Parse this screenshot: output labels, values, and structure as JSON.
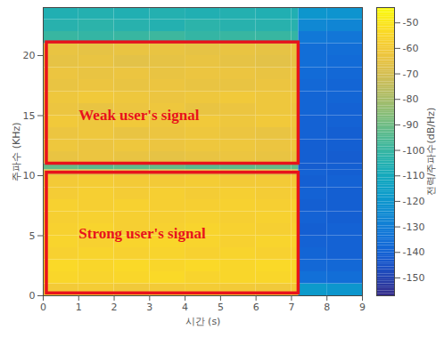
{
  "chart_data": {
    "type": "heatmap",
    "x_label": "시간 (s)",
    "y_label": "주파수 (KHz)",
    "xlim": [
      0,
      9
    ],
    "ylim": [
      0,
      24
    ],
    "xticks": [
      0,
      1,
      2,
      3,
      4,
      5,
      6,
      7,
      8,
      9
    ],
    "yticks": [
      0,
      5,
      10,
      15,
      20
    ],
    "grid": false,
    "x_edges": [
      0,
      1,
      2,
      3,
      4,
      5,
      6,
      7,
      7.2,
      8,
      9
    ],
    "y_edges": [
      0,
      1,
      2,
      3,
      4,
      5,
      6,
      7,
      8,
      9,
      10,
      10.5,
      11,
      12,
      13,
      14,
      15,
      16,
      17,
      18,
      19,
      20,
      21,
      22,
      23,
      24
    ],
    "cells": [
      [
        -60,
        -59,
        -61,
        -60,
        -59,
        -60,
        -61,
        -60,
        -118,
        -120
      ],
      [
        -55,
        -56,
        -55,
        -54,
        -56,
        -55,
        -55,
        -56,
        -135,
        -136
      ],
      [
        -54,
        -55,
        -54,
        -55,
        -54,
        -55,
        -54,
        -55,
        -138,
        -138
      ],
      [
        -57,
        -56,
        -57,
        -56,
        -57,
        -56,
        -57,
        -57,
        -139,
        -140
      ],
      [
        -56,
        -57,
        -56,
        -55,
        -56,
        -57,
        -56,
        -56,
        -140,
        -140
      ],
      [
        -57,
        -56,
        -58,
        -57,
        -56,
        -57,
        -58,
        -57,
        -141,
        -140
      ],
      [
        -58,
        -57,
        -58,
        -58,
        -57,
        -58,
        -57,
        -58,
        -140,
        -141
      ],
      [
        -57,
        -58,
        -57,
        -58,
        -58,
        -57,
        -58,
        -57,
        -141,
        -141
      ],
      [
        -59,
        -58,
        -59,
        -58,
        -59,
        -58,
        -59,
        -59,
        -140,
        -141
      ],
      [
        -60,
        -59,
        -60,
        -60,
        -59,
        -60,
        -60,
        -60,
        -141,
        -140
      ],
      [
        -66,
        -65,
        -66,
        -66,
        -65,
        -66,
        -66,
        -66,
        -140,
        -141
      ],
      [
        -92,
        -94,
        -93,
        -92,
        -94,
        -93,
        -92,
        -93,
        -142,
        -141
      ],
      [
        -64,
        -63,
        -64,
        -65,
        -64,
        -63,
        -64,
        -64,
        -141,
        -142
      ],
      [
        -62,
        -63,
        -62,
        -63,
        -62,
        -62,
        -63,
        -62,
        -141,
        -141
      ],
      [
        -63,
        -62,
        -64,
        -63,
        -62,
        -63,
        -64,
        -63,
        -140,
        -141
      ],
      [
        -61,
        -62,
        -61,
        -62,
        -61,
        -62,
        -61,
        -62,
        -140,
        -140
      ],
      [
        -63,
        -64,
        -63,
        -62,
        -64,
        -63,
        -62,
        -63,
        -139,
        -140
      ],
      [
        -62,
        -61,
        -62,
        -63,
        -62,
        -61,
        -62,
        -62,
        -139,
        -139
      ],
      [
        -64,
        -63,
        -64,
        -63,
        -64,
        -64,
        -63,
        -64,
        -138,
        -139
      ],
      [
        -63,
        -64,
        -63,
        -64,
        -63,
        -63,
        -64,
        -63,
        -137,
        -138
      ],
      [
        -65,
        -64,
        -66,
        -65,
        -64,
        -65,
        -66,
        -65,
        -136,
        -137
      ],
      [
        -64,
        -65,
        -64,
        -64,
        -65,
        -64,
        -65,
        -64,
        -136,
        -136
      ],
      [
        -100,
        -101,
        -100,
        -99,
        -101,
        -100,
        -100,
        -101,
        -132,
        -133
      ],
      [
        -104,
        -103,
        -104,
        -105,
        -103,
        -104,
        -104,
        -104,
        -126,
        -127
      ],
      [
        -106,
        -105,
        -106,
        -105,
        -106,
        -105,
        -106,
        -106,
        -120,
        -121
      ]
    ],
    "colorbar": {
      "label": "전력/주파수(dB/Hz)",
      "range": [
        -157,
        -44
      ],
      "ticks": [
        -150,
        -140,
        -130,
        -120,
        -110,
        -100,
        -90,
        -80,
        -70,
        -60,
        -50
      ]
    },
    "annotations": [
      {
        "label": "Weak user's signal",
        "label_x": 1.0,
        "label_y": 15.0,
        "x1": 0.1,
        "x2": 7.2,
        "y1": 11.0,
        "y2": 21.1,
        "color": "#e8121b"
      },
      {
        "label": "Strong user's signal",
        "label_x": 1.0,
        "label_y": 5.2,
        "x1": 0.1,
        "x2": 7.2,
        "y1": 0.2,
        "y2": 10.25,
        "color": "#e8121b"
      }
    ]
  }
}
